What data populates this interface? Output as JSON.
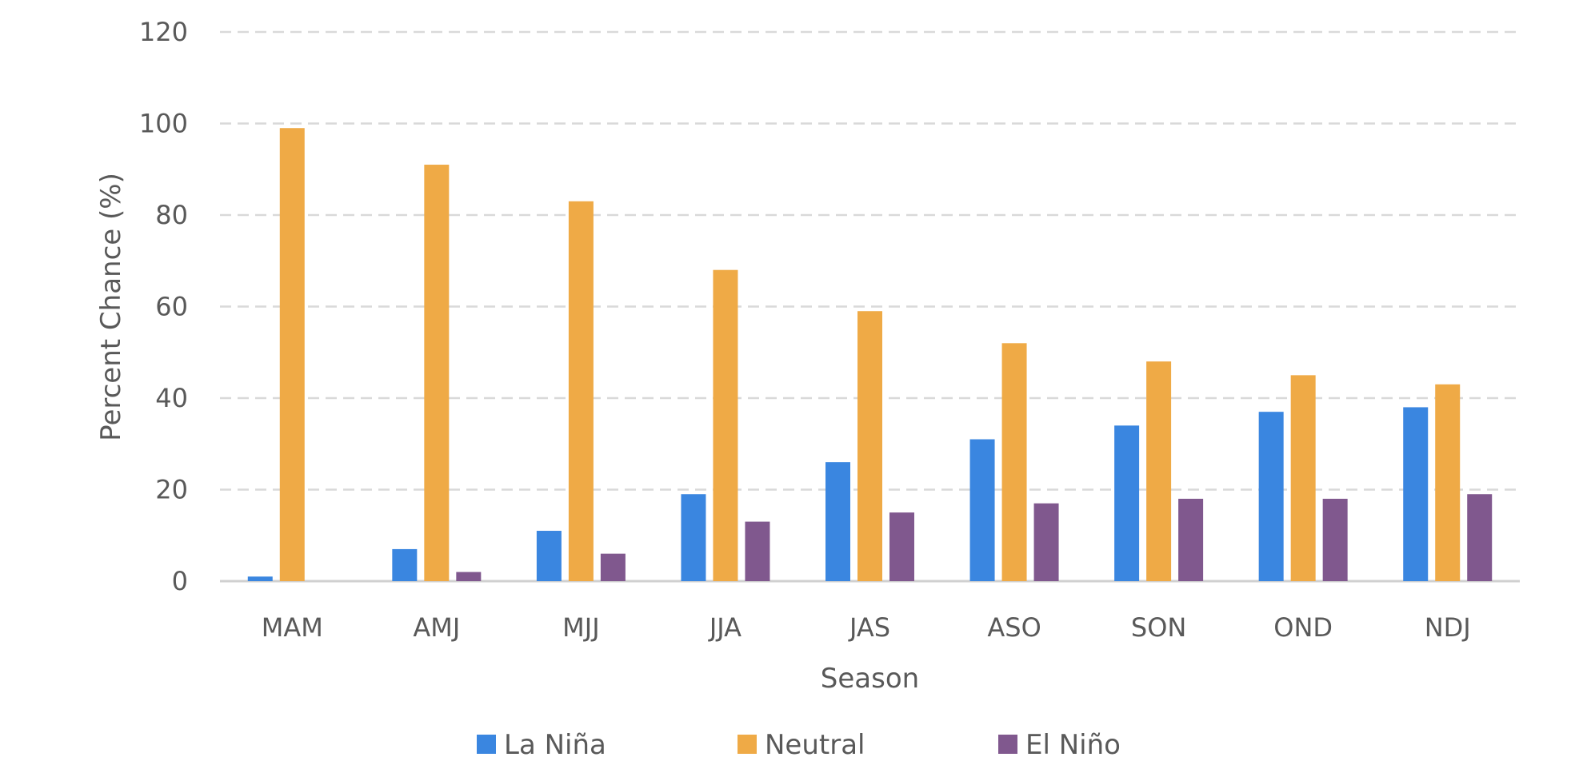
{
  "chart_data": {
    "type": "bar",
    "title": "",
    "xlabel": "Season",
    "ylabel": "Percent Chance (%)",
    "ylim": [
      0,
      120
    ],
    "yticks": [
      0,
      20,
      40,
      60,
      80,
      100,
      120
    ],
    "grid": true,
    "legend_position": "bottom",
    "categories": [
      "MAM",
      "AMJ",
      "MJJ",
      "JJA",
      "JAS",
      "ASO",
      "SON",
      "OND",
      "NDJ"
    ],
    "series": [
      {
        "name": "La Niña",
        "color": "#3a86e0",
        "values": [
          1,
          7,
          11,
          19,
          26,
          31,
          34,
          37,
          38
        ]
      },
      {
        "name": "Neutral",
        "color": "#efaa46",
        "values": [
          99,
          91,
          83,
          68,
          59,
          52,
          48,
          45,
          43
        ]
      },
      {
        "name": "El Niño",
        "color": "#80588e",
        "values": [
          0,
          2,
          6,
          13,
          15,
          17,
          18,
          18,
          19
        ]
      }
    ]
  }
}
